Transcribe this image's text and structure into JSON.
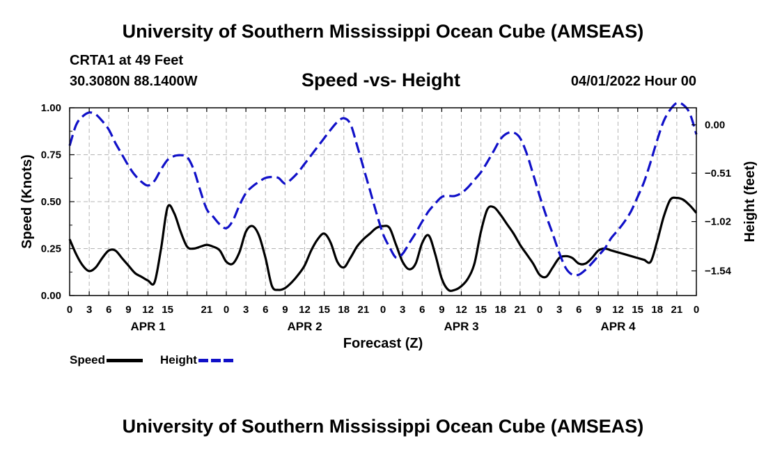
{
  "header": {
    "main_title": "University of Southern Mississippi Ocean Cube (AMSEAS)",
    "station_name": "CRTA1 at 49 Feet",
    "station_coords": "30.3080N  88.1400W",
    "chart_title": "Speed -vs- Height",
    "forecast_date": "04/01/2022 Hour 00"
  },
  "footer": {
    "title": "University of Southern Mississippi Ocean Cube (AMSEAS)"
  },
  "legend": {
    "speed_label": "Speed",
    "height_label": "Height"
  },
  "colors": {
    "speed": "#000000",
    "height": "#1010c8",
    "grid": "#b4b4b4"
  },
  "chart_data": {
    "type": "line",
    "title": "Speed -vs- Height",
    "xlabel": "Forecast (Z)",
    "ylabel": "Speed (Knots)",
    "y2label": "Height (feet)",
    "xlim": [
      0,
      96
    ],
    "ylim": [
      0,
      1.0
    ],
    "y2lim": [
      -1.8,
      0.18
    ],
    "grid": true,
    "x_ticks": [
      0,
      3,
      6,
      9,
      12,
      15,
      18,
      21,
      24,
      27,
      30,
      33,
      36,
      39,
      42,
      45,
      48,
      51,
      54,
      57,
      60,
      63,
      66,
      69,
      72,
      75,
      78,
      81,
      84,
      87,
      90,
      93,
      96
    ],
    "x_tick_labels": [
      "0",
      "3",
      "6",
      "9",
      "12",
      "15",
      "",
      "21",
      "0",
      "3",
      "6",
      "9",
      "12",
      "15",
      "18",
      "21",
      "0",
      "3",
      "6",
      "9",
      "12",
      "15",
      "18",
      "21",
      "0",
      "3",
      "6",
      "9",
      "12",
      "15",
      "18",
      "21",
      "0"
    ],
    "day_labels": [
      {
        "label": "APR 1",
        "hour": 12
      },
      {
        "label": "APR 2",
        "hour": 36
      },
      {
        "label": "APR 3",
        "hour": 60
      },
      {
        "label": "APR 4",
        "hour": 84
      }
    ],
    "y_ticks": [
      0,
      0.25,
      0.5,
      0.75,
      1.0
    ],
    "y_tick_labels": [
      "0.00",
      "0.25",
      "0.50",
      "0.75",
      "1.00"
    ],
    "y2_ticks": [
      0.0,
      -0.51,
      -1.02,
      -1.54
    ],
    "y2_tick_labels": [
      "0.00",
      "−0.51",
      "−1.02",
      "−1.54"
    ],
    "legend_position": "bottom-left",
    "series": [
      {
        "name": "Speed",
        "axis": "left",
        "style": "solid",
        "x": [
          0,
          1,
          2,
          3,
          4,
          5,
          6,
          7,
          8,
          9,
          10,
          11,
          12,
          13,
          14,
          15,
          16,
          17,
          18,
          19,
          20,
          21,
          22,
          23,
          24,
          25,
          26,
          27,
          28,
          29,
          30,
          31,
          32,
          33,
          34,
          35,
          36,
          37,
          38,
          39,
          40,
          41,
          42,
          43,
          44,
          45,
          46,
          47,
          48,
          49,
          50,
          51,
          52,
          53,
          54,
          55,
          56,
          57,
          58,
          59,
          60,
          61,
          62,
          63,
          64,
          65,
          66,
          67,
          68,
          69,
          70,
          71,
          72,
          73,
          74,
          75,
          76,
          77,
          78,
          79,
          80,
          81,
          82,
          83,
          84,
          85,
          86,
          87,
          88,
          89,
          90,
          91,
          92,
          93,
          94,
          95,
          96
        ],
        "values": [
          0.3,
          0.22,
          0.16,
          0.13,
          0.15,
          0.2,
          0.24,
          0.24,
          0.2,
          0.16,
          0.12,
          0.1,
          0.08,
          0.07,
          0.25,
          0.47,
          0.44,
          0.34,
          0.26,
          0.25,
          0.26,
          0.27,
          0.26,
          0.24,
          0.18,
          0.17,
          0.23,
          0.34,
          0.37,
          0.32,
          0.2,
          0.05,
          0.03,
          0.04,
          0.07,
          0.11,
          0.16,
          0.24,
          0.3,
          0.33,
          0.28,
          0.18,
          0.15,
          0.2,
          0.26,
          0.3,
          0.33,
          0.36,
          0.37,
          0.36,
          0.27,
          0.18,
          0.14,
          0.17,
          0.28,
          0.32,
          0.22,
          0.09,
          0.03,
          0.03,
          0.05,
          0.09,
          0.17,
          0.34,
          0.46,
          0.47,
          0.43,
          0.38,
          0.33,
          0.27,
          0.22,
          0.17,
          0.11,
          0.1,
          0.15,
          0.2,
          0.21,
          0.2,
          0.17,
          0.17,
          0.2,
          0.24,
          0.25,
          0.24,
          0.23,
          0.22,
          0.21,
          0.2,
          0.19,
          0.18,
          0.29,
          0.42,
          0.51,
          0.52,
          0.51,
          0.48,
          0.44
        ]
      },
      {
        "name": "Height",
        "axis": "right",
        "style": "dashed",
        "x": [
          0,
          1,
          2,
          3,
          4,
          5,
          6,
          7,
          8,
          9,
          10,
          11,
          12,
          13,
          14,
          15,
          16,
          17,
          18,
          19,
          20,
          21,
          22,
          23,
          24,
          25,
          26,
          27,
          28,
          29,
          30,
          31,
          32,
          33,
          34,
          35,
          36,
          37,
          38,
          39,
          40,
          41,
          42,
          43,
          44,
          45,
          46,
          47,
          48,
          49,
          50,
          51,
          52,
          53,
          54,
          55,
          56,
          57,
          58,
          59,
          60,
          61,
          62,
          63,
          64,
          65,
          66,
          67,
          68,
          69,
          70,
          71,
          72,
          73,
          74,
          75,
          76,
          77,
          78,
          79,
          80,
          81,
          82,
          83,
          84,
          85,
          86,
          87,
          88,
          89,
          90,
          91,
          92,
          93,
          94,
          95,
          96
        ],
        "values": [
          -0.22,
          0.0,
          0.09,
          0.13,
          0.11,
          0.04,
          -0.05,
          -0.19,
          -0.31,
          -0.43,
          -0.53,
          -0.6,
          -0.64,
          -0.59,
          -0.47,
          -0.37,
          -0.33,
          -0.32,
          -0.34,
          -0.47,
          -0.69,
          -0.89,
          -0.97,
          -1.05,
          -1.09,
          -1.01,
          -0.85,
          -0.72,
          -0.65,
          -0.6,
          -0.56,
          -0.55,
          -0.56,
          -0.62,
          -0.57,
          -0.5,
          -0.41,
          -0.32,
          -0.23,
          -0.14,
          -0.05,
          0.03,
          0.07,
          0.01,
          -0.21,
          -0.45,
          -0.69,
          -0.93,
          -1.15,
          -1.29,
          -1.4,
          -1.36,
          -1.25,
          -1.14,
          -1.02,
          -0.91,
          -0.83,
          -0.76,
          -0.75,
          -0.75,
          -0.72,
          -0.66,
          -0.58,
          -0.5,
          -0.39,
          -0.27,
          -0.15,
          -0.09,
          -0.08,
          -0.14,
          -0.3,
          -0.52,
          -0.75,
          -0.96,
          -1.15,
          -1.35,
          -1.51,
          -1.58,
          -1.58,
          -1.53,
          -1.46,
          -1.38,
          -1.3,
          -1.19,
          -1.11,
          -1.02,
          -0.91,
          -0.76,
          -0.6,
          -0.39,
          -0.16,
          0.04,
          0.16,
          0.23,
          0.21,
          0.12,
          -0.1
        ]
      }
    ]
  }
}
